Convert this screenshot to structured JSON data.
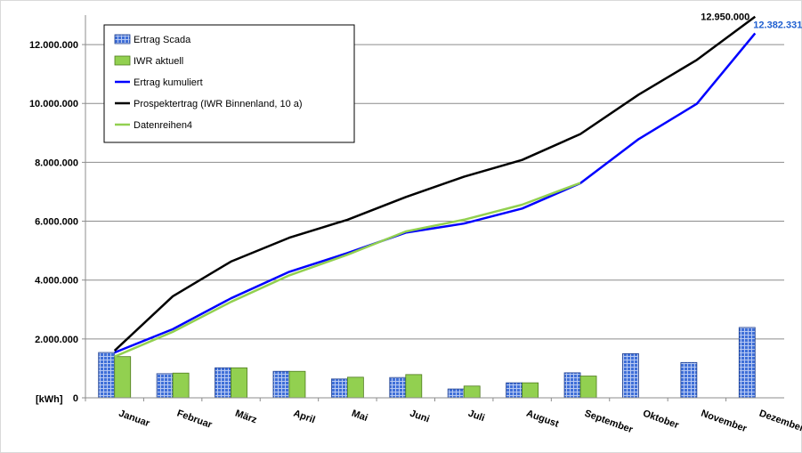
{
  "chart_data": {
    "type": "bar",
    "title": "",
    "ylabel": "[kWh]",
    "ylim": [
      0,
      13000000
    ],
    "yticks": [
      0,
      2000000,
      4000000,
      6000000,
      8000000,
      10000000,
      12000000
    ],
    "ytick_labels": [
      "0",
      "2.000.000",
      "4.000.000",
      "6.000.000",
      "8.000.000",
      "10.000.000",
      "12.000.000"
    ],
    "grid": true,
    "legend_position": "top-left",
    "categories": [
      "Januar",
      "Februar",
      "März",
      "April",
      "Mai",
      "Juni",
      "Juli",
      "August",
      "September",
      "Oktober",
      "November",
      "Dezember"
    ],
    "series": [
      {
        "name": "Ertrag Scada",
        "kind": "bar",
        "color": "#3f6fd8",
        "values": [
          1540000,
          820000,
          1020000,
          900000,
          640000,
          690000,
          300000,
          510000,
          850000,
          1500000,
          1200000,
          2390000
        ]
      },
      {
        "name": "IWR aktuell",
        "kind": "bar",
        "color": "#92d050",
        "values": [
          1400000,
          840000,
          1020000,
          900000,
          700000,
          790000,
          400000,
          510000,
          740000,
          null,
          null,
          null
        ]
      },
      {
        "name": "Ertrag kumuliert",
        "kind": "line",
        "color": "#0000ff",
        "values": [
          1540000,
          2330000,
          3380000,
          4280000,
          4920000,
          5610000,
          5920000,
          6430000,
          7290000,
          8790000,
          9990000,
          12382331
        ]
      },
      {
        "name": "Prospektertrag (IWR Binnenland, 10 a)",
        "kind": "line",
        "color": "#000000",
        "values": [
          1600000,
          3450000,
          4630000,
          5440000,
          6050000,
          6820000,
          7510000,
          8080000,
          8960000,
          10300000,
          11480000,
          12950000
        ]
      },
      {
        "name": "Datenreihen4",
        "kind": "line",
        "color": "#92d050",
        "values": [
          1400000,
          2240000,
          3260000,
          4160000,
          4860000,
          5650000,
          6050000,
          6560000,
          7300000,
          null,
          null,
          null
        ]
      }
    ],
    "annotations": [
      {
        "text": "12.950.000",
        "series": "Prospektertrag (IWR Binnenland, 10 a)",
        "category": "Dezember",
        "color": "#000000"
      },
      {
        "text": "12.382.331",
        "series": "Ertrag kumuliert",
        "category": "Dezember",
        "color": "#1f5fd0"
      }
    ]
  }
}
